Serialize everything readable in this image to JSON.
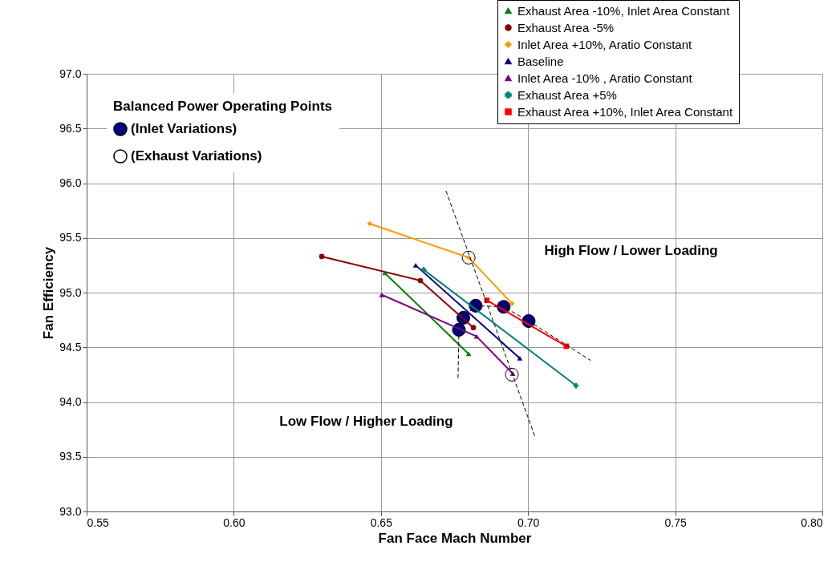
{
  "chart_data": {
    "type": "line",
    "xlabel": "Fan Face Mach Number",
    "ylabel": "Fan Efficiency",
    "legend_title": "Balanced Power Operating Points",
    "xlim": [
      0.55,
      0.8
    ],
    "ylim": [
      93.0,
      97.0
    ],
    "xticks": [
      0.55,
      {
        "value": 0.6,
        "label": "0.60"
      },
      0.65,
      {
        "value": 0.7,
        "label": "0.70"
      },
      0.75,
      {
        "value": 0.8,
        "label": "0.80"
      }
    ],
    "yticks": [
      {
        "value": 93,
        "label": "93.0"
      },
      {
        "value": 93.5,
        "label": "93.5"
      },
      {
        "value": 94,
        "label": "94.0"
      },
      {
        "value": 94.5,
        "label": "94.5"
      },
      {
        "value": 95,
        "label": "95.0"
      },
      {
        "value": 95.5,
        "label": "95.5"
      },
      {
        "value": 96,
        "label": "96.0"
      },
      {
        "value": 96.5,
        "label": "96.5"
      },
      {
        "value": 97,
        "label": "97.0"
      }
    ],
    "grid": true,
    "legend": "top right",
    "annotations": [
      "High Flow / Lower Loading",
      "Low Flow / Higher Loading"
    ],
    "series": [
      {
        "name": "Exhaust Area -10%, Inlet Area Constant",
        "color": "#008000",
        "marker": "triangle",
        "x": [
          0.6513,
          0.6798
        ],
        "values": [
          95.18,
          94.44
        ]
      },
      {
        "name": "Exhaust Area -5%",
        "color": "#8b0000",
        "marker": "circle",
        "x": [
          0.6299,
          0.6634,
          0.6814
        ],
        "values": [
          95.33,
          95.11,
          94.68
        ]
      },
      {
        "name": "Inlet Area +10%, Aratio Constant",
        "color": "#ff9900",
        "marker": "diamond",
        "x": [
          0.6462,
          0.6798,
          0.6945
        ],
        "values": [
          95.63,
          95.32,
          94.9
        ]
      },
      {
        "name": "Baseline",
        "color": "#000080",
        "marker": "triangle",
        "x": [
          0.6618,
          0.6972
        ],
        "values": [
          95.25,
          94.4
        ]
      },
      {
        "name": "Inlet Area -10% , Aratio Constant",
        "color": "#800080",
        "marker": "triangle",
        "x": [
          0.6503,
          0.6825,
          0.6948
        ],
        "values": [
          94.98,
          94.6,
          94.26
        ]
      },
      {
        "name": "Exhaust Area +5%",
        "color": "#008080",
        "marker": "cross",
        "x": [
          0.6645,
          0.7163
        ],
        "values": [
          95.21,
          94.15
        ]
      },
      {
        "name": "Exhaust Area +10%, Inlet Area Constant",
        "color": "#ff0000",
        "marker": "square",
        "x": [
          0.686,
          0.713
        ],
        "values": [
          94.93,
          94.51
        ]
      },
      {
        "type": "line",
        "color": "#000000",
        "line_style": "dashed",
        "x": [
          0.6762,
          0.6765,
          0.678,
          0.6822,
          0.6917,
          0.7002,
          0.7213
        ],
        "values": [
          94.22,
          94.66,
          94.77,
          94.88,
          94.87,
          94.74,
          94.38
        ]
      },
      {
        "type": "line",
        "color": "#000000",
        "line_style": "dashed",
        "x": [
          0.6721,
          0.7024
        ],
        "values": [
          95.93,
          93.68
        ]
      },
      {
        "type": "scatter",
        "name": "(Inlet Variations)",
        "color": "#000080",
        "marker": "circle",
        "x": [
          0.6765,
          0.678,
          0.6822,
          0.6917,
          0.7002
        ],
        "values": [
          94.66,
          94.77,
          94.88,
          94.87,
          94.74
        ]
      },
      {
        "type": "scatter",
        "name": "(Exhaust Variations)",
        "color": "#ffffff",
        "marker": "circle",
        "x": [
          0.6798,
          0.6945
        ],
        "values": [
          95.32,
          94.25
        ]
      }
    ]
  }
}
